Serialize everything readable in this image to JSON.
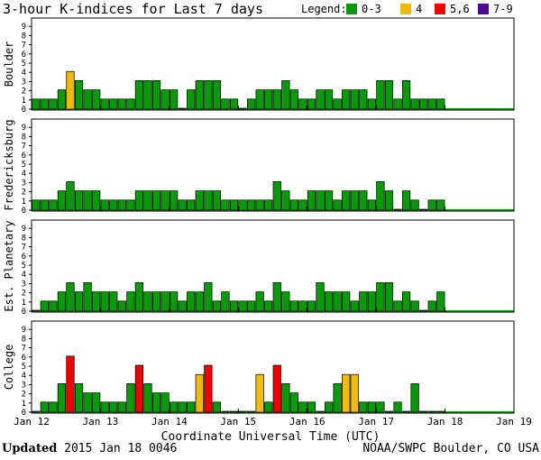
{
  "header": {
    "title": "3-hour K-indices for Last 7 days",
    "legend_label": "Legend:",
    "legend": [
      {
        "label": "0-3",
        "color": "#0a990a"
      },
      {
        "label": "4",
        "color": "#f0bb10"
      },
      {
        "label": "5,6",
        "color": "#f00000"
      },
      {
        "label": "7-9",
        "color": "#4b0a8c"
      }
    ]
  },
  "footer": {
    "updated_label": "Updated",
    "updated_value": "2015 Jan 18 0046",
    "credit": "NOAA/SWPC Boulder, CO USA"
  },
  "chart_data": {
    "type": "bar",
    "title": "3-hour K-indices for Last 7 days",
    "xlabel": "Coordinate Universal Time (UTC)",
    "x_ticks": [
      "Jan 12",
      "Jan 13",
      "Jan 14",
      "Jan 15",
      "Jan 16",
      "Jan 17",
      "Jan 18",
      "Jan 19"
    ],
    "y_ticks": [
      "0",
      "1",
      "2",
      "3",
      "4",
      "5",
      "6",
      "7",
      "8",
      "9"
    ],
    "ylim": [
      0,
      9
    ],
    "bars_per_day": 8,
    "series": [
      {
        "name": "Boulder",
        "values": [
          1,
          1,
          1,
          2,
          4,
          3,
          2,
          2,
          1,
          1,
          1,
          1,
          3,
          3,
          3,
          2,
          2,
          0,
          2,
          3,
          3,
          3,
          1,
          1,
          0,
          1,
          2,
          2,
          2,
          3,
          2,
          1,
          1,
          2,
          2,
          1,
          2,
          2,
          2,
          1,
          3,
          3,
          1,
          3,
          1,
          1,
          1,
          1
        ]
      },
      {
        "name": "Fredericksburg",
        "values": [
          1,
          1,
          1,
          2,
          3,
          2,
          2,
          2,
          1,
          1,
          1,
          1,
          2,
          2,
          2,
          2,
          2,
          1,
          1,
          2,
          2,
          2,
          1,
          1,
          1,
          1,
          1,
          1,
          3,
          2,
          1,
          1,
          2,
          2,
          2,
          1,
          2,
          2,
          2,
          1,
          3,
          2,
          0,
          2,
          1,
          0,
          1,
          1
        ]
      },
      {
        "name": "Est. Planetary",
        "values": [
          0,
          1,
          1,
          2,
          3,
          2,
          3,
          2,
          2,
          2,
          1,
          2,
          3,
          2,
          2,
          2,
          2,
          1,
          2,
          2,
          3,
          1,
          2,
          1,
          1,
          1,
          2,
          1,
          3,
          2,
          1,
          1,
          1,
          3,
          2,
          2,
          2,
          1,
          2,
          2,
          3,
          3,
          1,
          2,
          1,
          0,
          1,
          2
        ]
      },
      {
        "name": "College",
        "values": [
          0,
          1,
          1,
          3,
          6,
          3,
          2,
          2,
          1,
          1,
          1,
          3,
          5,
          3,
          2,
          2,
          1,
          1,
          1,
          4,
          5,
          1,
          0,
          0,
          0,
          0,
          4,
          1,
          5,
          3,
          2,
          1,
          1,
          0,
          1,
          3,
          4,
          4,
          1,
          1,
          1,
          0,
          1,
          0,
          3,
          0,
          0,
          0
        ]
      }
    ],
    "color_rule": [
      {
        "range": "0-3",
        "color": "#0a990a"
      },
      {
        "range": "4",
        "color": "#f0bb10"
      },
      {
        "range": "5,6",
        "color": "#f00000"
      },
      {
        "range": "7-9",
        "color": "#4b0a8c"
      }
    ],
    "grid": false
  }
}
